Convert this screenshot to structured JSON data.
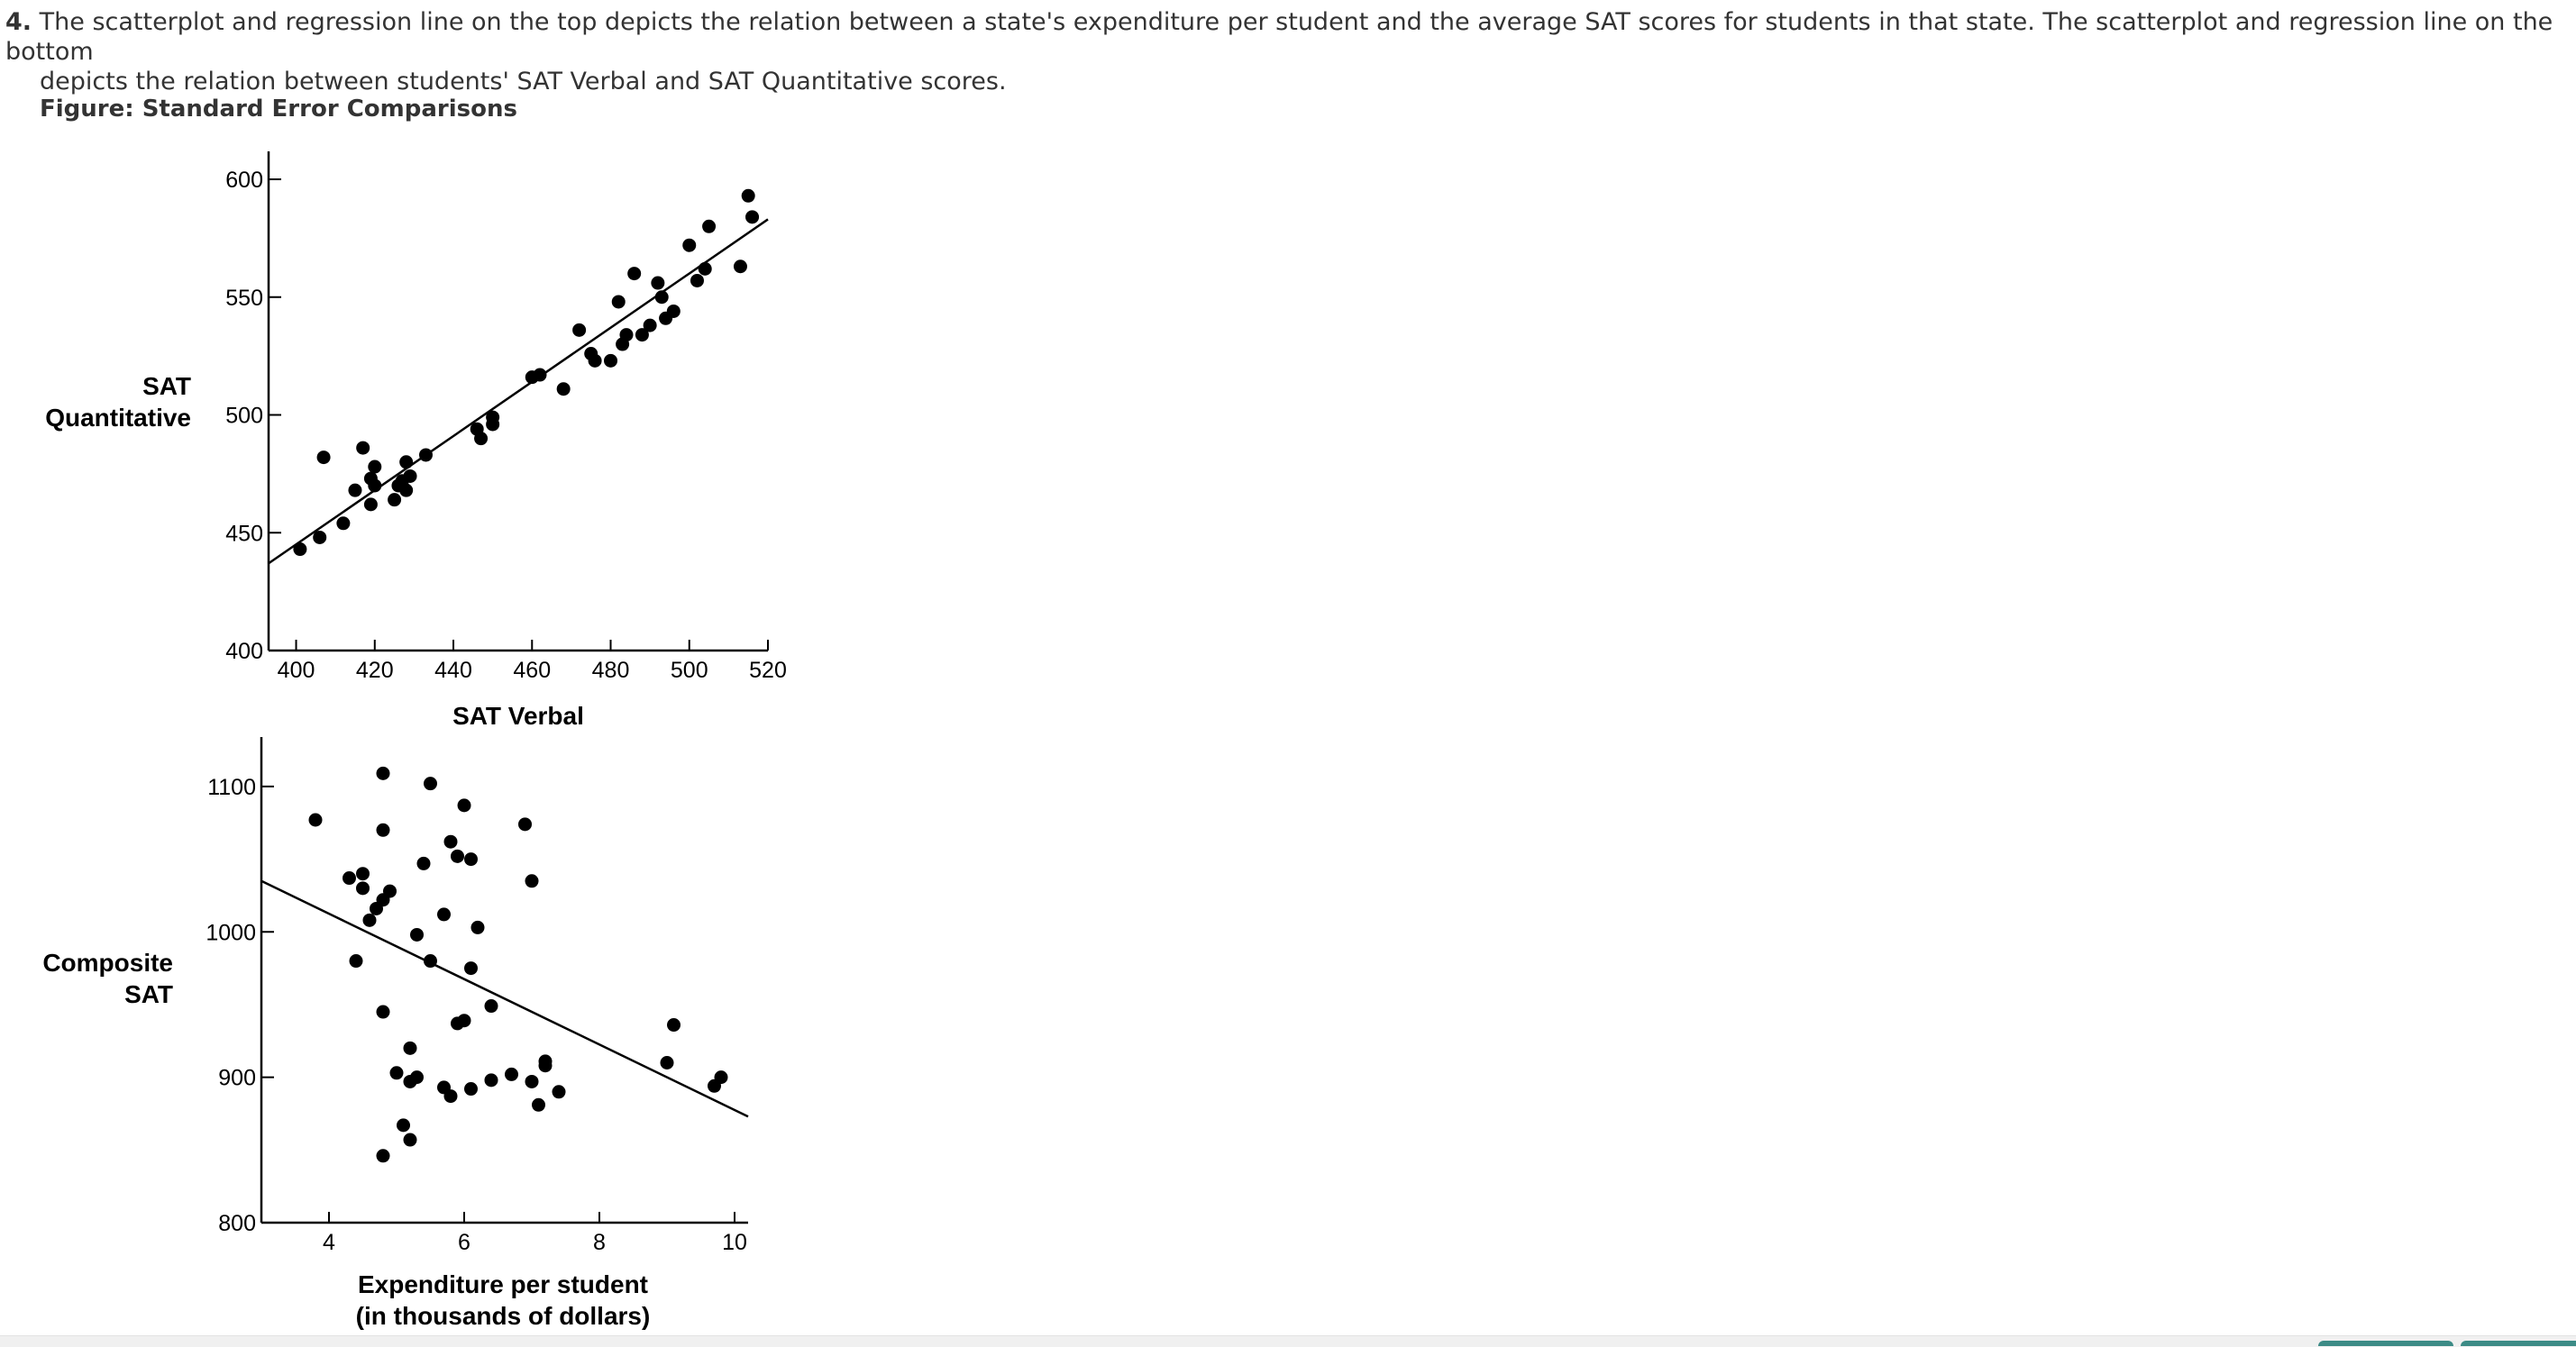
{
  "question": {
    "number": "4.",
    "text_line1": "The scatterplot and regression line on the top depicts the relation between a state's expenditure per student and the average SAT scores for students in that state. The scatterplot and regression line on the bottom",
    "text_line2": "depicts the relation between students' SAT Verbal and SAT Quantitative scores."
  },
  "figure": {
    "title": "Figure: Standard Error Comparisons"
  },
  "chart_data": [
    {
      "type": "scatter",
      "title": "",
      "xlabel": "SAT Verbal",
      "ylabel_lines": [
        "SAT",
        "Quantitative"
      ],
      "xlim": [
        393,
        520
      ],
      "ylim": [
        400,
        600
      ],
      "xticks": [
        400,
        420,
        440,
        460,
        480,
        500,
        520
      ],
      "yticks": [
        400,
        450,
        500,
        550,
        600
      ],
      "regression": [
        [
          393,
          437
        ],
        [
          520,
          583
        ]
      ],
      "points": [
        [
          401,
          443
        ],
        [
          406,
          448
        ],
        [
          407,
          482
        ],
        [
          412,
          454
        ],
        [
          415,
          468
        ],
        [
          417,
          486
        ],
        [
          419,
          473
        ],
        [
          419,
          462
        ],
        [
          420,
          478
        ],
        [
          420,
          470
        ],
        [
          425,
          464
        ],
        [
          426,
          470
        ],
        [
          427,
          472
        ],
        [
          428,
          468
        ],
        [
          428,
          480
        ],
        [
          429,
          474
        ],
        [
          433,
          483
        ],
        [
          446,
          494
        ],
        [
          447,
          490
        ],
        [
          450,
          496
        ],
        [
          450,
          499
        ],
        [
          460,
          516
        ],
        [
          462,
          517
        ],
        [
          468,
          511
        ],
        [
          472,
          536
        ],
        [
          475,
          526
        ],
        [
          476,
          523
        ],
        [
          480,
          523
        ],
        [
          482,
          548
        ],
        [
          483,
          530
        ],
        [
          484,
          534
        ],
        [
          486,
          560
        ],
        [
          488,
          534
        ],
        [
          490,
          538
        ],
        [
          492,
          556
        ],
        [
          493,
          550
        ],
        [
          494,
          541
        ],
        [
          496,
          544
        ],
        [
          500,
          572
        ],
        [
          502,
          557
        ],
        [
          504,
          562
        ],
        [
          505,
          580
        ],
        [
          513,
          563
        ],
        [
          515,
          593
        ],
        [
          516,
          584
        ]
      ]
    },
    {
      "type": "scatter",
      "title": "",
      "xlabel_lines": [
        "Expenditure per student",
        "(in thousands of dollars)"
      ],
      "ylabel_lines": [
        "Composite",
        "SAT"
      ],
      "xlim": [
        3.0,
        10.2
      ],
      "ylim": [
        800,
        1165
      ],
      "xticks": [
        4,
        6,
        8,
        10
      ],
      "yticks": [
        800,
        900,
        1000,
        1100
      ],
      "regression": [
        [
          3.0,
          1035
        ],
        [
          10.2,
          873
        ]
      ],
      "points": [
        [
          3.8,
          1077
        ],
        [
          4.3,
          1037
        ],
        [
          4.4,
          980
        ],
        [
          4.5,
          1040
        ],
        [
          4.5,
          1030
        ],
        [
          4.6,
          1008
        ],
        [
          4.7,
          1016
        ],
        [
          4.8,
          1022
        ],
        [
          4.8,
          1109
        ],
        [
          4.8,
          1070
        ],
        [
          4.8,
          945
        ],
        [
          4.8,
          846
        ],
        [
          4.9,
          1028
        ],
        [
          5.0,
          903
        ],
        [
          5.1,
          867
        ],
        [
          5.2,
          920
        ],
        [
          5.2,
          857
        ],
        [
          5.2,
          897
        ],
        [
          5.3,
          998
        ],
        [
          5.3,
          900
        ],
        [
          5.4,
          1047
        ],
        [
          5.5,
          980
        ],
        [
          5.5,
          1102
        ],
        [
          5.7,
          1012
        ],
        [
          5.7,
          893
        ],
        [
          5.8,
          1062
        ],
        [
          5.8,
          887
        ],
        [
          5.9,
          937
        ],
        [
          5.9,
          1052
        ],
        [
          6.0,
          939
        ],
        [
          6.0,
          1087
        ],
        [
          6.1,
          1050
        ],
        [
          6.1,
          892
        ],
        [
          6.1,
          975
        ],
        [
          6.2,
          1003
        ],
        [
          6.4,
          949
        ],
        [
          6.4,
          898
        ],
        [
          6.7,
          902
        ],
        [
          6.9,
          1074
        ],
        [
          7.0,
          1035
        ],
        [
          7.0,
          897
        ],
        [
          7.1,
          881
        ],
        [
          7.2,
          911
        ],
        [
          7.2,
          908
        ],
        [
          7.4,
          890
        ],
        [
          9.0,
          910
        ],
        [
          9.1,
          936
        ],
        [
          9.7,
          894
        ],
        [
          9.8,
          900
        ]
      ]
    }
  ],
  "colors": {
    "marker": "#000000",
    "text": "#333333",
    "footer": "#f0f0f0",
    "accent": "#3c8b86"
  }
}
